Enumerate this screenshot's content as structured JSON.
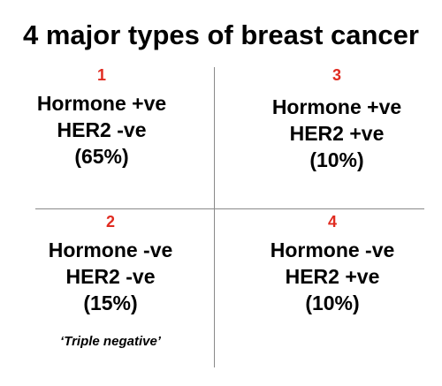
{
  "title": "4 major types of breast cancer",
  "colors": {
    "number_accent": "#e02b20",
    "divider": "#8a8a8a",
    "text": "#000000"
  },
  "quadrants": [
    {
      "number": "1",
      "line1": "Hormone +ve",
      "line2": "HER2 -ve",
      "line3": "(65%)"
    },
    {
      "number": "2",
      "line1": "Hormone -ve",
      "line2": "HER2 -ve",
      "line3": "(15%)",
      "note": "‘Triple negative’"
    },
    {
      "number": "3",
      "line1": "Hormone +ve",
      "line2": "HER2 +ve",
      "line3": "(10%)"
    },
    {
      "number": "4",
      "line1": "Hormone -ve",
      "line2": "HER2 +ve",
      "line3": "(10%)"
    }
  ]
}
